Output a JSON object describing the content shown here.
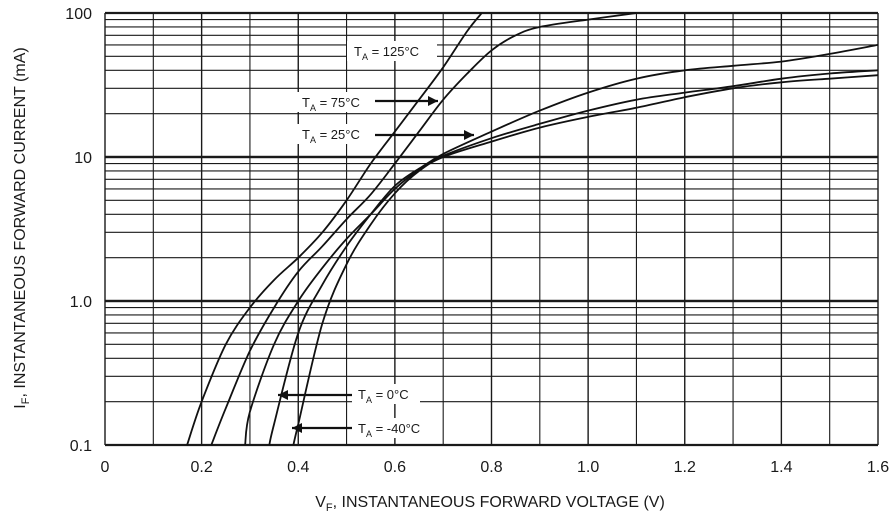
{
  "chart_data": {
    "type": "line",
    "xlabel_main": "V",
    "xlabel_sub": "F",
    "xlabel_rest": ", INSTANTANEOUS FORWARD VOLTAGE (V)",
    "ylabel_main": "I",
    "ylabel_sub": "F",
    "ylabel_rest": ", INSTANTANEOUS FORWARD CURRENT (mA)",
    "xlim": [
      0,
      1.6
    ],
    "ylim": [
      0.1,
      100
    ],
    "yscale": "log",
    "grid": true,
    "x_ticks": [
      {
        "v": 0,
        "label": "0"
      },
      {
        "v": 0.2,
        "label": "0.2"
      },
      {
        "v": 0.4,
        "label": "0.4"
      },
      {
        "v": 0.6,
        "label": "0.6"
      },
      {
        "v": 0.8,
        "label": "0.8"
      },
      {
        "v": 1.0,
        "label": "1.0"
      },
      {
        "v": 1.2,
        "label": "1.2"
      },
      {
        "v": 1.4,
        "label": "1.4"
      },
      {
        "v": 1.6,
        "label": "1.6"
      }
    ],
    "y_ticks": [
      {
        "v": 0.1,
        "label": "0.1"
      },
      {
        "v": 1.0,
        "label": "1.0"
      },
      {
        "v": 10,
        "label": "10"
      },
      {
        "v": 100,
        "label": "100"
      }
    ],
    "series": [
      {
        "name": "TA = 125°C",
        "x": [
          0.17,
          0.2,
          0.25,
          0.3,
          0.35,
          0.4,
          0.45,
          0.5,
          0.55,
          0.6,
          0.65,
          0.7,
          0.75,
          0.78
        ],
        "y": [
          0.1,
          0.2,
          0.5,
          0.9,
          1.4,
          2.0,
          3.0,
          5.0,
          9.0,
          15,
          25,
          42,
          75,
          100
        ]
      },
      {
        "name": "TA = 75°C",
        "x": [
          0.22,
          0.25,
          0.3,
          0.35,
          0.4,
          0.45,
          0.5,
          0.55,
          0.6,
          0.65,
          0.7,
          0.75,
          0.8,
          0.85,
          0.9,
          1.0,
          1.1
        ],
        "y": [
          0.1,
          0.18,
          0.45,
          0.9,
          1.6,
          2.4,
          3.7,
          5.5,
          9.0,
          15,
          25,
          38,
          55,
          70,
          80,
          90,
          100
        ]
      },
      {
        "name": "TA = 25°C",
        "x": [
          0.29,
          0.3,
          0.35,
          0.4,
          0.45,
          0.5,
          0.55,
          0.6,
          0.65,
          0.7,
          0.8,
          0.9,
          1.0,
          1.1,
          1.2,
          1.3,
          1.4,
          1.5,
          1.6
        ],
        "y": [
          0.1,
          0.17,
          0.5,
          1.0,
          1.7,
          2.7,
          4.0,
          6.0,
          8.2,
          10.5,
          15,
          21,
          28,
          35,
          40,
          43,
          46,
          52,
          60
        ]
      },
      {
        "name": "TA = 0°C",
        "x": [
          0.34,
          0.35,
          0.4,
          0.45,
          0.5,
          0.55,
          0.6,
          0.65,
          0.7,
          0.8,
          0.9,
          1.0,
          1.1,
          1.2,
          1.3,
          1.4,
          1.5,
          1.6
        ],
        "y": [
          0.1,
          0.14,
          0.6,
          1.3,
          2.4,
          4.0,
          6.3,
          8.3,
          10.2,
          13.5,
          17,
          21,
          25,
          28,
          31,
          35,
          38,
          40
        ]
      },
      {
        "name": "TA = -40°C",
        "x": [
          0.39,
          0.4,
          0.45,
          0.5,
          0.55,
          0.6,
          0.65,
          0.7,
          0.8,
          0.9,
          1.0,
          1.1,
          1.2,
          1.3,
          1.4,
          1.5,
          1.6
        ],
        "y": [
          0.1,
          0.14,
          0.7,
          1.8,
          3.4,
          5.6,
          8.0,
          10.0,
          12.8,
          16,
          19,
          22,
          26,
          30,
          33,
          35,
          37
        ]
      }
    ],
    "annotations": [
      {
        "main": "T",
        "sub": "A",
        "rest": " = 125°C",
        "arrow": false
      },
      {
        "main": "T",
        "sub": "A",
        "rest": " = 75°C",
        "arrow": true
      },
      {
        "main": "T",
        "sub": "A",
        "rest": " = 25°C",
        "arrow": true
      },
      {
        "main": "T",
        "sub": "A",
        "rest": " = 0°C",
        "arrow": true
      },
      {
        "main": "T",
        "sub": "A",
        "rest": " = -40°C",
        "arrow": true
      }
    ]
  }
}
